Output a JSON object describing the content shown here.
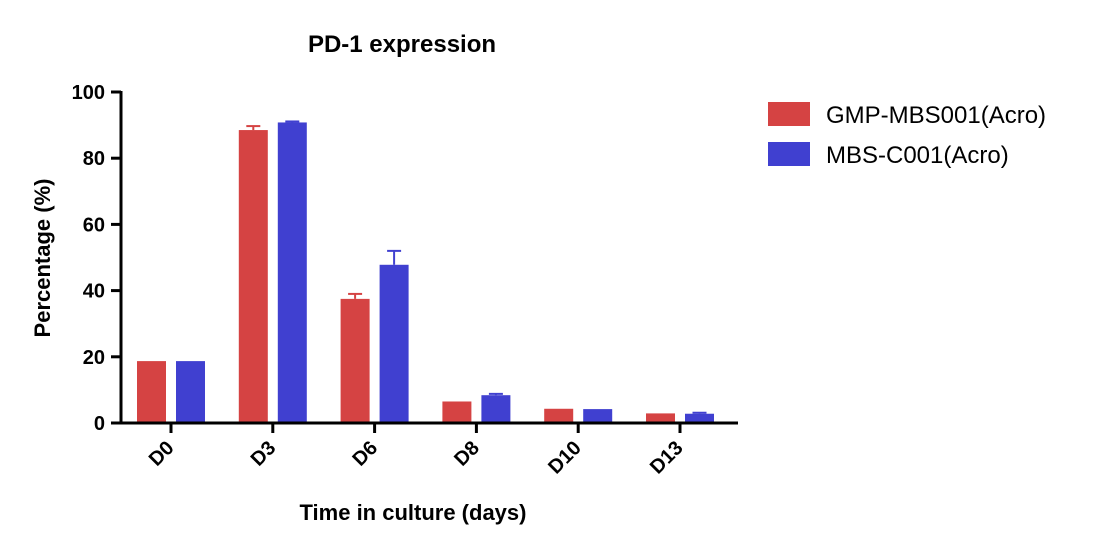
{
  "chart_data": {
    "type": "bar",
    "title": "PD-1 expression",
    "xlabel": "Time in culture (days)",
    "ylabel": "Percentage (%)",
    "categories": [
      "D0",
      "D3",
      "D6",
      "D8",
      "D10",
      "D13"
    ],
    "ylim": [
      0,
      100
    ],
    "yticks": [
      0,
      20,
      40,
      60,
      80,
      100
    ],
    "legend_position": "top-right",
    "series": [
      {
        "name": "GMP-MBS001(Acro)",
        "color": "#d54343",
        "values": [
          18.7,
          88.5,
          37.5,
          6.5,
          4.3,
          2.9
        ],
        "errors": [
          0,
          1.2,
          1.5,
          0,
          0,
          0
        ]
      },
      {
        "name": "MBS-C001(Acro)",
        "color": "#4040d0",
        "values": [
          18.7,
          90.8,
          47.8,
          8.4,
          4.2,
          2.8
        ],
        "errors": [
          0,
          0.3,
          4.2,
          0.4,
          0,
          0.3
        ]
      }
    ]
  }
}
